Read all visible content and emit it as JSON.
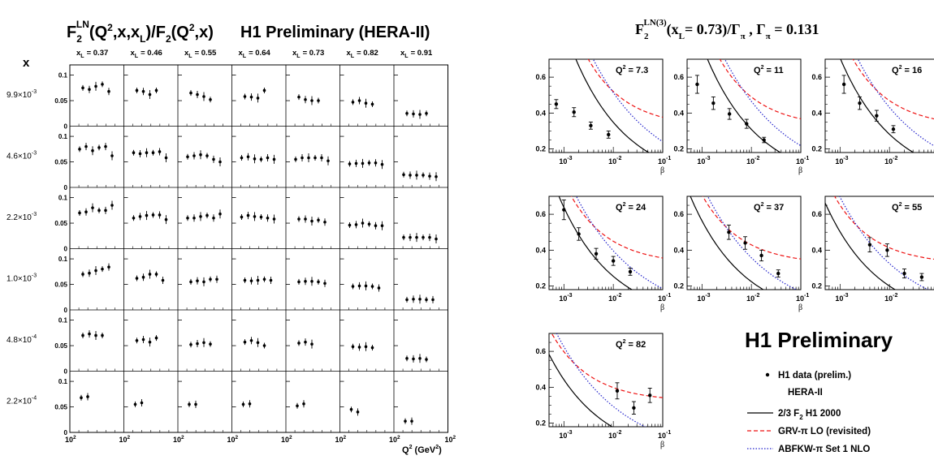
{
  "left_figure": {
    "title_parts": [
      "F",
      "2",
      "LN",
      "(Q",
      "2",
      ",x,x",
      "L",
      ")/F",
      "2",
      "(Q",
      "2",
      ",x)"
    ],
    "brand": "H1 Preliminary (HERA-II)",
    "x_symbol": "x",
    "xl_prefix": "x",
    "xl_sub": "L",
    "columns": [
      "= 0.37",
      "= 0.46",
      "= 0.55",
      "= 0.64",
      "= 0.73",
      "= 0.82",
      "= 0.91"
    ],
    "rows": [
      {
        "label": "9.9×10",
        "exp": "-3"
      },
      {
        "label": "4.6×10",
        "exp": "-3"
      },
      {
        "label": "2.2×10",
        "exp": "-3"
      },
      {
        "label": "1.0×10",
        "exp": "-3"
      },
      {
        "label": "4.8×10",
        "exp": "-4"
      },
      {
        "label": "2.2×10",
        "exp": "-4"
      }
    ],
    "y_ticks": [
      "0.1",
      "0.05",
      "0"
    ],
    "x_tick_base": "10",
    "x_tick_exp": "2",
    "axis_label_parts": [
      "Q",
      "2",
      " (GeV",
      "2",
      ")"
    ]
  },
  "right_figure": {
    "title_parts": [
      "F",
      "2",
      "LN(3)",
      "(x",
      "L",
      "= 0.73)/Γ",
      "π",
      " , Γ",
      "π",
      " = 0.131"
    ],
    "brand": "H1 Preliminary",
    "beta_label": "β",
    "y_ticks": [
      "0.6",
      "0.4",
      "0.2"
    ],
    "x_tick_base": "10",
    "x_tick_exps": [
      "-3",
      "-2",
      "-1"
    ],
    "legend": {
      "data": "H1 data (prelim.)",
      "data2": "HERA-II",
      "h1_parts": [
        "2/3 F",
        "2",
        "  H1 2000"
      ],
      "grv": "GRV-π LO (revisited)",
      "abfkw": "ABFKW-π Set 1 NLO"
    }
  },
  "colors": {
    "axis": "#000000",
    "data": "#000000",
    "h1": "#000000",
    "grv": "#ee1111",
    "abfkw": "#2222cc"
  },
  "chart_data": [
    {
      "type": "scatter",
      "grid_layout": "6 rows (x) × 7 columns (x_L)",
      "ylim": [
        0,
        0.12
      ],
      "points": [
        [
          [
            0.075,
            0.072,
            0.078,
            0.082,
            0.068
          ],
          [
            0.07,
            0.068,
            0.062,
            0.07
          ],
          [
            0.065,
            0.062,
            0.058,
            0.052
          ],
          [
            0.058,
            0.057,
            0.055,
            0.07
          ],
          [
            0.057,
            0.052,
            0.05,
            0.05
          ],
          [
            0.047,
            0.05,
            0.045,
            0.043
          ],
          [
            0.025,
            0.024,
            0.023,
            0.025
          ]
        ],
        [
          [
            0.075,
            0.08,
            0.072,
            0.078,
            0.08,
            0.062
          ],
          [
            0.068,
            0.066,
            0.068,
            0.068,
            0.07,
            0.058
          ],
          [
            0.06,
            0.062,
            0.064,
            0.062,
            0.055,
            0.05
          ],
          [
            0.058,
            0.06,
            0.056,
            0.055,
            0.058,
            0.055
          ],
          [
            0.055,
            0.058,
            0.058,
            0.058,
            0.058,
            0.052
          ],
          [
            0.046,
            0.047,
            0.047,
            0.048,
            0.048,
            0.045
          ],
          [
            0.025,
            0.024,
            0.024,
            0.024,
            0.022,
            0.021
          ]
        ],
        [
          [
            0.07,
            0.072,
            0.08,
            0.075,
            0.075,
            0.085
          ],
          [
            0.06,
            0.063,
            0.065,
            0.066,
            0.066,
            0.057
          ],
          [
            0.06,
            0.06,
            0.063,
            0.065,
            0.06,
            0.068
          ],
          [
            0.062,
            0.065,
            0.063,
            0.062,
            0.06,
            0.058
          ],
          [
            0.058,
            0.058,
            0.054,
            0.056,
            0.052
          ],
          [
            0.046,
            0.047,
            0.05,
            0.048,
            0.045,
            0.045
          ],
          [
            0.022,
            0.022,
            0.022,
            0.022,
            0.022,
            0.019
          ]
        ],
        [
          [
            0.07,
            0.072,
            0.077,
            0.08,
            0.084
          ],
          [
            0.062,
            0.064,
            0.07,
            0.07,
            0.058
          ],
          [
            0.055,
            0.057,
            0.055,
            0.06,
            0.06
          ],
          [
            0.058,
            0.057,
            0.058,
            0.06,
            0.058
          ],
          [
            0.055,
            0.056,
            0.056,
            0.055,
            0.052
          ],
          [
            0.046,
            0.047,
            0.047,
            0.046,
            0.043
          ],
          [
            0.02,
            0.021,
            0.021,
            0.02,
            0.02
          ]
        ],
        [
          [
            0.07,
            0.073,
            0.07,
            0.07
          ],
          [
            0.06,
            0.062,
            0.057,
            0.065
          ],
          [
            0.052,
            0.054,
            0.056,
            0.053
          ],
          [
            0.057,
            0.06,
            0.056,
            0.05
          ],
          [
            0.055,
            0.057,
            0.053
          ],
          [
            0.048,
            0.047,
            0.048,
            0.046
          ],
          [
            0.025,
            0.024,
            0.025,
            0.023
          ]
        ],
        [
          [
            0.068,
            0.07
          ],
          [
            0.055,
            0.058
          ],
          [
            0.055,
            0.055
          ],
          [
            0.055,
            0.056
          ],
          [
            0.052,
            0.056
          ],
          [
            0.045,
            0.04
          ],
          [
            0.022,
            0.022
          ]
        ]
      ]
    },
    {
      "type": "scatter",
      "xlabel": "β",
      "xscale": "log",
      "xlim": [
        0.0005,
        0.1
      ],
      "ylim": [
        0.18,
        0.7
      ],
      "panels": [
        {
          "label": "Q",
          "q2": "7.3",
          "x": [
            0.0007,
            0.0016,
            0.0035,
            0.008
          ],
          "y": [
            0.45,
            0.405,
            0.33,
            0.28
          ],
          "err": [
            0.025,
            0.025,
            0.02,
            0.02
          ]
        },
        {
          "label": "Q",
          "q2": "11",
          "x": [
            0.0008,
            0.0017,
            0.0036,
            0.008,
            0.018
          ],
          "y": [
            0.56,
            0.455,
            0.395,
            0.34,
            0.25
          ],
          "err": [
            0.05,
            0.035,
            0.03,
            0.025,
            0.015
          ]
        },
        {
          "label": "Q",
          "q2": "16",
          "x": [
            0.0012,
            0.0025,
            0.0055,
            0.012
          ],
          "y": [
            0.56,
            0.455,
            0.385,
            0.31
          ],
          "err": [
            0.05,
            0.035,
            0.03,
            0.02
          ]
        },
        {
          "label": "Q",
          "q2": "24",
          "x": [
            0.001,
            0.002,
            0.0045,
            0.01,
            0.022
          ],
          "y": [
            0.625,
            0.49,
            0.38,
            0.34,
            0.28
          ],
          "err": [
            0.055,
            0.035,
            0.03,
            0.025,
            0.02
          ]
        },
        {
          "label": "Q",
          "q2": "37",
          "x": [
            0.0035,
            0.0075,
            0.016,
            0.035
          ],
          "y": [
            0.5,
            0.44,
            0.37,
            0.27
          ],
          "err": [
            0.04,
            0.035,
            0.03,
            0.02
          ]
        },
        {
          "label": "Q",
          "q2": "55",
          "x": [
            0.004,
            0.009,
            0.02,
            0.045
          ],
          "y": [
            0.43,
            0.4,
            0.27,
            0.25
          ],
          "err": [
            0.04,
            0.035,
            0.025,
            0.02
          ]
        },
        {
          "label": "Q",
          "q2": "82",
          "x": [
            0.012,
            0.026,
            0.055
          ],
          "y": [
            0.38,
            0.285,
            0.355
          ],
          "err": [
            0.045,
            0.035,
            0.04
          ]
        }
      ]
    }
  ]
}
